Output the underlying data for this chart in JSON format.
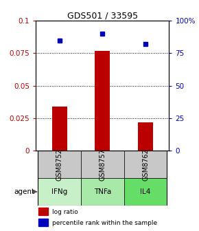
{
  "title": "GDS501 / 33595",
  "samples": [
    "GSM8752",
    "GSM8757",
    "GSM8762"
  ],
  "agents": [
    "IFNg",
    "TNFa",
    "IL4"
  ],
  "log_ratios": [
    0.034,
    0.077,
    0.022
  ],
  "percentile_ranks": [
    85,
    90,
    82
  ],
  "bar_color": "#bb0000",
  "point_color": "#0000bb",
  "ylim_left": [
    0,
    0.1
  ],
  "ylim_right": [
    0,
    100
  ],
  "yticks_left": [
    0,
    0.025,
    0.05,
    0.075,
    0.1
  ],
  "yticks_right": [
    0,
    25,
    50,
    75,
    100
  ],
  "ytick_labels_right": [
    "0",
    "25",
    "50",
    "75",
    "100%"
  ],
  "ytick_labels_left": [
    "0",
    "0.025",
    "0.05",
    "0.075",
    "0.1"
  ],
  "sample_box_color": "#c8c8c8",
  "agent_colors": [
    "#c8f0c8",
    "#a8e8a8",
    "#66dd66"
  ],
  "agent_label": "agent",
  "legend_log": "log ratio",
  "legend_pct": "percentile rank within the sample",
  "bar_width": 0.35,
  "title_fontsize": 9,
  "tick_fontsize": 7.5,
  "label_fontsize": 7.5
}
